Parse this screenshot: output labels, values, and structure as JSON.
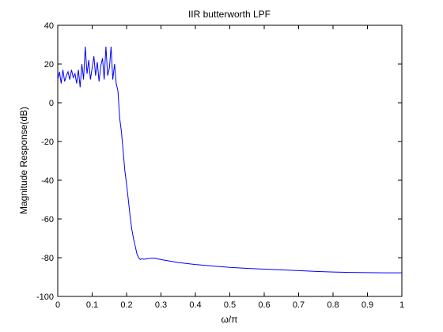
{
  "chart_data": {
    "type": "line",
    "title": "IIR butterworth LPF",
    "xlabel": "ω/π",
    "ylabel": "Magnitude Response(dB)",
    "xlim": [
      0,
      1
    ],
    "ylim": [
      -100,
      40
    ],
    "xticks": [
      0,
      0.1,
      0.2,
      0.3,
      0.4,
      0.5,
      0.6,
      0.7,
      0.8,
      0.9,
      1
    ],
    "xtick_labels": [
      "0",
      "0.1",
      "0.2",
      "0.3",
      "0.4",
      "0.5",
      "0.6",
      "0.7",
      "0.8",
      "0.9",
      "1"
    ],
    "yticks": [
      40,
      20,
      0,
      -20,
      -40,
      -60,
      -80,
      -100
    ],
    "ytick_labels": [
      "40",
      "20",
      "0",
      "-20",
      "-40",
      "-60",
      "-80",
      "-100"
    ],
    "grid": false,
    "line_color": "#0000ff",
    "series": [
      {
        "x": [
          0,
          0.005,
          0.01,
          0.015,
          0.02,
          0.025,
          0.03,
          0.035,
          0.04,
          0.045,
          0.05,
          0.055,
          0.06,
          0.065,
          0.07,
          0.075,
          0.08,
          0.085,
          0.09,
          0.095,
          0.1,
          0.105,
          0.11,
          0.115,
          0.12,
          0.125,
          0.13,
          0.135,
          0.14,
          0.145,
          0.15,
          0.155,
          0.16,
          0.165,
          0.17,
          0.175,
          0.18,
          0.185,
          0.19,
          0.195,
          0.2,
          0.205,
          0.21,
          0.215,
          0.22,
          0.225,
          0.23,
          0.235,
          0.24,
          0.245,
          0.25,
          0.26,
          0.27,
          0.28,
          0.3,
          0.35,
          0.4,
          0.45,
          0.5,
          0.55,
          0.6,
          0.65,
          0.7,
          0.75,
          0.8,
          0.85,
          0.9,
          0.95,
          1.0
        ],
        "y": [
          12,
          16,
          10,
          17,
          11,
          14,
          16,
          12,
          17,
          13,
          15,
          10,
          17,
          8,
          20,
          12,
          29,
          15,
          22,
          12,
          18,
          24,
          14,
          21,
          11,
          19,
          23,
          12,
          29,
          14,
          18,
          29,
          12,
          20,
          10,
          6,
          -8,
          -15,
          -25,
          -35,
          -42,
          -50,
          -58,
          -65,
          -70,
          -74,
          -78,
          -80,
          -81,
          -80.5,
          -80.8,
          -80.5,
          -80.3,
          -80.2,
          -81,
          -82.5,
          -83.5,
          -84.3,
          -85,
          -85.5,
          -85.9,
          -86.3,
          -86.7,
          -87.1,
          -87.4,
          -87.6,
          -87.7,
          -87.8,
          -87.8
        ]
      }
    ]
  }
}
